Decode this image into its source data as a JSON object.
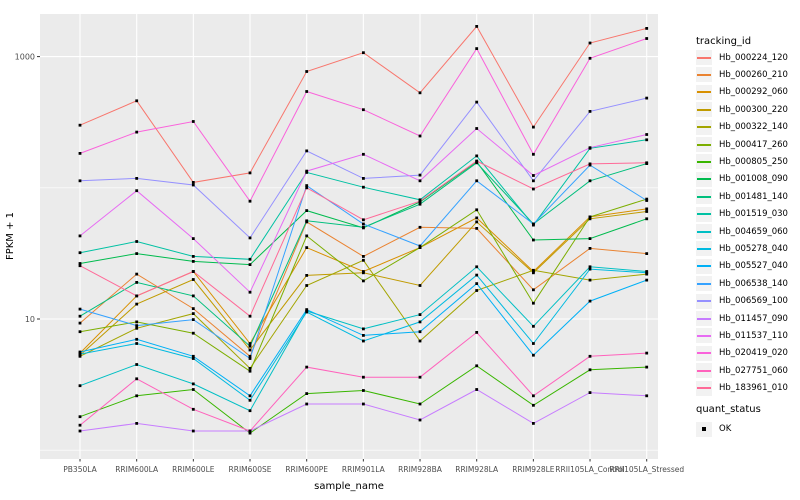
{
  "figure": {
    "y_axis_title": "FPKM + 1",
    "x_axis_title": "sample_name",
    "y_tick_labels": [
      "1000",
      "10"
    ]
  },
  "legend": {
    "tracking_title": "tracking_id",
    "quant_title": "quant_status",
    "quant_item_label": "OK"
  },
  "chart_data": {
    "type": "line",
    "title": "",
    "xlabel": "sample_name",
    "ylabel": "FPKM + 1",
    "y_scale": "log10",
    "ylim": [
      0.86,
      2130
    ],
    "y_major_breaks": [
      10,
      1000
    ],
    "y_minor_breaks": [
      1,
      100
    ],
    "grid": "on",
    "legend_position": "right",
    "panel_bg": "#EBEBEB",
    "grid_color": "#FFFFFF",
    "point_color": "#000000",
    "point_shape": "square",
    "quant_status": "OK",
    "categories": [
      "PB350LA",
      "RRIM600LA",
      "RRIM600LE",
      "RRIM600SE",
      "RRIM600PE",
      "RRIM901LA",
      "RRIM928BA",
      "RRIM928LA",
      "RRIM928LE",
      "RRII105LA_Control",
      "RRII105LA_Stressed"
    ],
    "series": [
      {
        "name": "Hb_000224_120",
        "color": "#F8766D",
        "values": [
          300,
          460,
          110,
          130,
          770,
          1070,
          530,
          1700,
          290,
          1270,
          1640
        ]
      },
      {
        "name": "Hb_000260_210",
        "color": "#EA8331",
        "values": [
          9.3,
          22,
          12,
          5.2,
          55,
          30,
          50,
          49,
          16.7,
          34.5,
          31.5
        ]
      },
      {
        "name": "Hb_000292_060",
        "color": "#D89000",
        "values": [
          5.5,
          15,
          23,
          6.5,
          35,
          23,
          35,
          59,
          23,
          60,
          69
        ]
      },
      {
        "name": "Hb_000300_220",
        "color": "#C09B00",
        "values": [
          5.3,
          13,
          20,
          5.8,
          21.5,
          22.5,
          18,
          55,
          22.5,
          58,
          66
        ]
      },
      {
        "name": "Hb_000322_140",
        "color": "#A3A500",
        "values": [
          5.2,
          8.5,
          11,
          4.2,
          18,
          28,
          6.8,
          16.5,
          23.5,
          19.8,
          22
        ]
      },
      {
        "name": "Hb_000417_260",
        "color": "#7CAE00",
        "values": [
          8.0,
          9.5,
          7.8,
          4.0,
          43,
          19.5,
          35,
          68,
          13.2,
          60,
          82
        ]
      },
      {
        "name": "Hb_000805_250",
        "color": "#39B600",
        "values": [
          1.8,
          2.6,
          2.9,
          1.35,
          2.7,
          2.85,
          2.25,
          4.4,
          2.2,
          4.1,
          4.3
        ]
      },
      {
        "name": "Hb_001008_090",
        "color": "#00BB4E",
        "values": [
          26.5,
          31.5,
          27.5,
          26,
          67,
          49.5,
          78,
          158,
          40,
          41,
          58
        ]
      },
      {
        "name": "Hb_001481_140",
        "color": "#00BF7D",
        "values": [
          10.5,
          19,
          15,
          6.2,
          56,
          50,
          75,
          155,
          53,
          113,
          153
        ]
      },
      {
        "name": "Hb_001519_030",
        "color": "#00C1A3",
        "values": [
          32,
          39,
          30,
          28.5,
          131,
          101,
          81,
          175,
          52,
          200,
          232
        ]
      },
      {
        "name": "Hb_004659_060",
        "color": "#00BFC4",
        "values": [
          3.1,
          4.5,
          3.2,
          2.0,
          11.5,
          8.4,
          10.8,
          25,
          8.8,
          25,
          23
        ]
      },
      {
        "name": "Hb_005278_040",
        "color": "#00BAE0",
        "values": [
          5.4,
          6.5,
          5.0,
          2.4,
          11.3,
          6.8,
          9.5,
          21.6,
          6.5,
          24,
          22.5
        ]
      },
      {
        "name": "Hb_005527_040",
        "color": "#00B0F6",
        "values": [
          5.6,
          7.0,
          5.2,
          2.6,
          11.8,
          7.5,
          8.0,
          18.6,
          5.3,
          13.7,
          19.8
        ]
      },
      {
        "name": "Hb_006538_140",
        "color": "#35A2FF",
        "values": [
          11.9,
          8.9,
          9.9,
          5.0,
          104,
          53,
          36,
          113,
          53,
          149,
          80
        ]
      },
      {
        "name": "Hb_006569_100",
        "color": "#9590FF",
        "values": [
          113,
          118,
          105,
          41.5,
          191,
          118,
          125,
          450,
          113,
          382,
          483
        ]
      },
      {
        "name": "Hb_011457_090",
        "color": "#C77CFF",
        "values": [
          1.4,
          1.6,
          1.4,
          1.4,
          2.25,
          2.25,
          1.7,
          2.9,
          1.6,
          2.75,
          2.6
        ]
      },
      {
        "name": "Hb_011537_110",
        "color": "#E76BF3",
        "values": [
          43,
          95,
          41,
          16,
          134,
          180,
          113,
          283,
          124,
          202,
          255
        ]
      },
      {
        "name": "Hb_020419_020",
        "color": "#FA62DB",
        "values": [
          183,
          266,
          320,
          79,
          542,
          394,
          248,
          1150,
          180,
          970,
          1375
        ]
      },
      {
        "name": "Hb_027751_060",
        "color": "#FF62BC",
        "values": [
          1.55,
          3.5,
          2.05,
          1.4,
          4.3,
          3.6,
          3.6,
          7.9,
          2.6,
          5.2,
          5.5
        ]
      },
      {
        "name": "Hb_183961_010",
        "color": "#FF6A98",
        "values": [
          25.5,
          15,
          23,
          10.5,
          100,
          57,
          79,
          160,
          98,
          152,
          155
        ]
      }
    ]
  }
}
